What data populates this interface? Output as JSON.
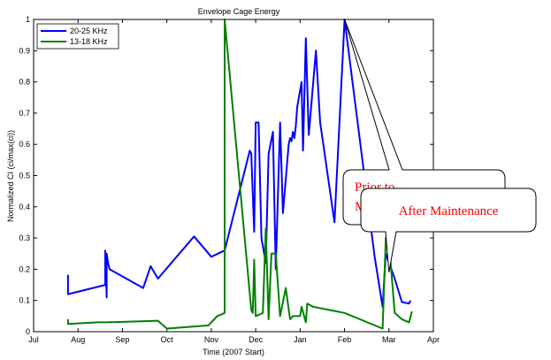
{
  "chart_data": {
    "type": "line",
    "title": "Envelope Cage Energy",
    "xlabel": "Time (2007 Start)",
    "ylabel": "Normalized CI (ci/max(ci))",
    "x_ticks": [
      "Jul",
      "Aug",
      "Sep",
      "Oct",
      "Nov",
      "Dec",
      "Jan",
      "Feb",
      "Mar",
      "Apr"
    ],
    "y_ticks": [
      "0",
      "0.1",
      "0.2",
      "0.3",
      "0.4",
      "0.5",
      "0.6",
      "0.7",
      "0.8",
      "0.9",
      "1"
    ],
    "xlim": [
      "Jul",
      "Apr"
    ],
    "ylim": [
      0,
      1
    ],
    "legend_position": "top-left",
    "series": [
      {
        "name": "20-25 KHz",
        "color": "#0000ff",
        "points": [
          [
            "Jul 25",
            0.165
          ],
          [
            "Jul 25",
            0.18
          ],
          [
            "Jul 25",
            0.12
          ],
          [
            "Aug 20",
            0.15
          ],
          [
            "Aug 20",
            0.26
          ],
          [
            "Aug 21",
            0.11
          ],
          [
            "Aug 21",
            0.25
          ],
          [
            "Aug 22",
            0.22
          ],
          [
            "Aug 23",
            0.2
          ],
          [
            "Sep 15",
            0.14
          ],
          [
            "Sep 20",
            0.21
          ],
          [
            "Sep 25",
            0.17
          ],
          [
            "Oct 20",
            0.305
          ],
          [
            "Nov 1",
            0.24
          ],
          [
            "Nov 10",
            0.26
          ],
          [
            "Nov 27",
            0.58
          ],
          [
            "Nov 28",
            0.57
          ],
          [
            "Nov 30",
            0.32
          ],
          [
            "Dec 1",
            0.67
          ],
          [
            "Dec 3",
            0.67
          ],
          [
            "Dec 5",
            0.3
          ],
          [
            "Dec 8",
            0.22
          ],
          [
            "Dec 10",
            0.57
          ],
          [
            "Dec 13",
            0.64
          ],
          [
            "Dec 15",
            0.2
          ],
          [
            "Dec 18",
            0.67
          ],
          [
            "Dec 20",
            0.38
          ],
          [
            "Dec 24",
            0.6
          ],
          [
            "Dec 25",
            0.62
          ],
          [
            "Dec 26",
            0.61
          ],
          [
            "Dec 27",
            0.64
          ],
          [
            "Dec 28",
            0.62
          ],
          [
            "Dec 29",
            0.66
          ],
          [
            "Dec 30",
            0.72
          ],
          [
            "Jan 2",
            0.8
          ],
          [
            "Jan 3",
            0.58
          ],
          [
            "Jan 5",
            0.94
          ],
          [
            "Jan 7",
            0.63
          ],
          [
            "Jan 12",
            0.9
          ],
          [
            "Jan 15",
            0.67
          ],
          [
            "Jan 25",
            0.35
          ],
          [
            "Feb 1",
            1.0
          ],
          [
            "Feb 20",
            0.24
          ],
          [
            "Feb 25",
            0.08
          ],
          [
            "Feb 27",
            0.25
          ],
          [
            "Mar 5",
            0.17
          ],
          [
            "Mar 10",
            0.095
          ],
          [
            "Mar 15",
            0.09
          ],
          [
            "Mar 16",
            0.1
          ]
        ]
      },
      {
        "name": "13-18 KHz",
        "color": "#008000",
        "points": [
          [
            "Jul 25",
            0.04
          ],
          [
            "Jul 25",
            0.025
          ],
          [
            "Aug 15",
            0.03
          ],
          [
            "Aug 21",
            0.03
          ],
          [
            "Sep 25",
            0.035
          ],
          [
            "Oct 1",
            0.01
          ],
          [
            "Oct 30",
            0.02
          ],
          [
            "Nov 5",
            0.05
          ],
          [
            "Nov 10",
            0.06
          ],
          [
            "Nov 10",
            1.0
          ],
          [
            "Nov 28",
            0.07
          ],
          [
            "Nov 29",
            0.06
          ],
          [
            "Nov 30",
            0.23
          ],
          [
            "Dec 1",
            0.05
          ],
          [
            "Dec 6",
            0.06
          ],
          [
            "Dec 8",
            0.33
          ],
          [
            "Dec 10",
            0.04
          ],
          [
            "Dec 12",
            0.25
          ],
          [
            "Dec 15",
            0.25
          ],
          [
            "Dec 18",
            0.05
          ],
          [
            "Dec 22",
            0.14
          ],
          [
            "Dec 25",
            0.04
          ],
          [
            "Dec 27",
            0.05
          ],
          [
            "Jan 1",
            0.05
          ],
          [
            "Jan 2",
            0.08
          ],
          [
            "Jan 5",
            0.03
          ],
          [
            "Jan 6",
            0.09
          ],
          [
            "Jan 10",
            0.08
          ],
          [
            "Feb 1",
            0.06
          ],
          [
            "Feb 25",
            0.01
          ],
          [
            "Feb 27",
            0.3
          ],
          [
            "Mar 2",
            0.23
          ],
          [
            "Mar 5",
            0.06
          ],
          [
            "Mar 10",
            0.04
          ],
          [
            "Mar 15",
            0.03
          ],
          [
            "Mar 17",
            0.065
          ]
        ]
      }
    ],
    "annotations": [
      {
        "lines": [
          "Prior to",
          "Maintenance"
        ],
        "points_to": [
          "Feb 1",
          1.0
        ],
        "color": "#ff0000"
      },
      {
        "lines": [
          "After Maintenance"
        ],
        "points_to": [
          "Mar 1",
          0.19
        ],
        "color": "#ff0000"
      }
    ]
  }
}
